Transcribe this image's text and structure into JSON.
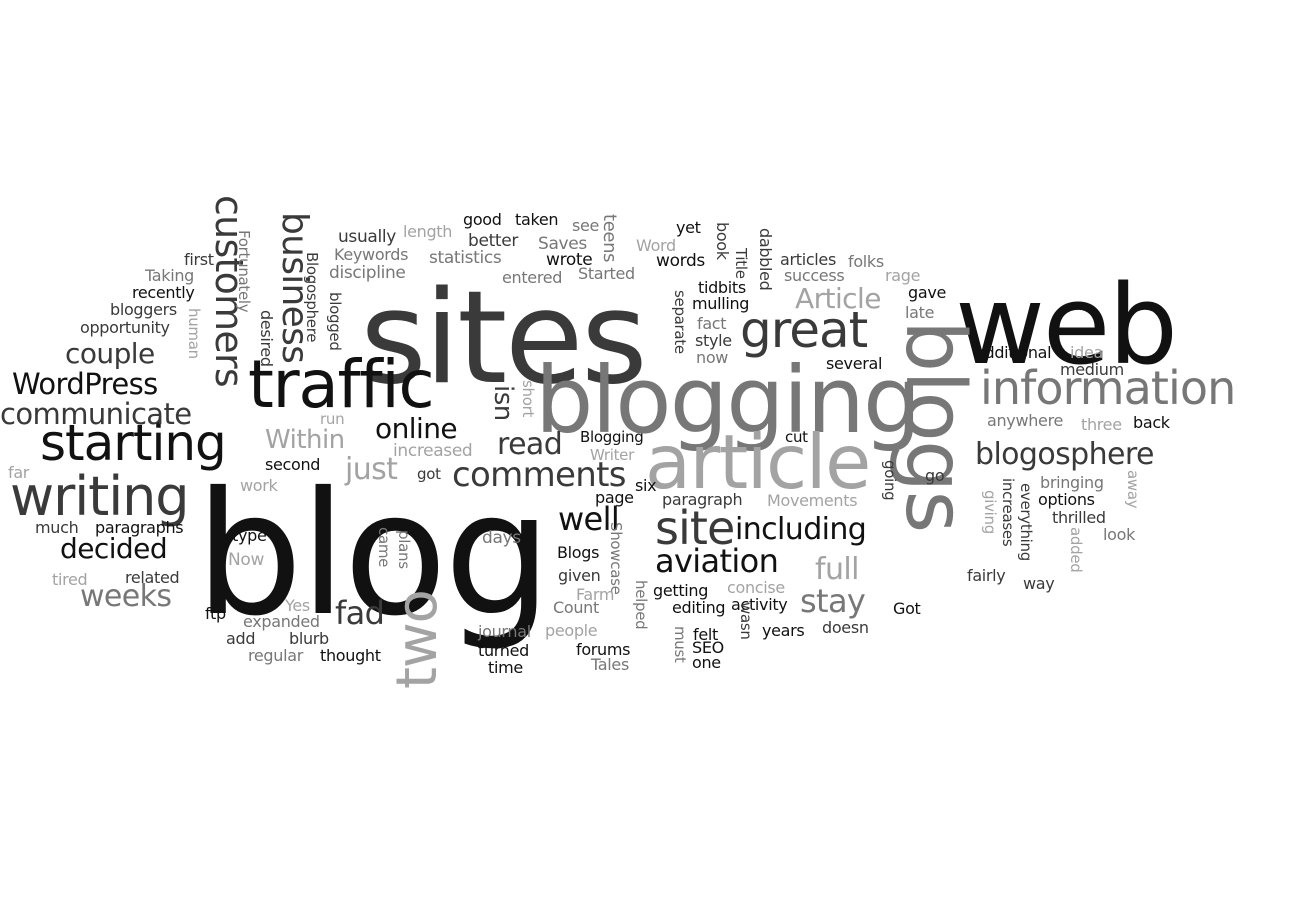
{
  "word_cloud": {
    "colors": {
      "black": "#111111",
      "dark": "#3a3a3a",
      "gray": "#777777",
      "light": "#a3a3a3"
    },
    "words": [
      {
        "text": "blog",
        "shade": "black"
      },
      {
        "text": "sites",
        "shade": "dark"
      },
      {
        "text": "web",
        "shade": "black"
      },
      {
        "text": "blogging",
        "shade": "gray"
      },
      {
        "text": "blogs",
        "shade": "gray"
      },
      {
        "text": "article",
        "shade": "light"
      },
      {
        "text": "traffic",
        "shade": "black"
      },
      {
        "text": "information",
        "shade": "gray"
      },
      {
        "text": "two",
        "shade": "light"
      },
      {
        "text": "writing",
        "shade": "dark"
      },
      {
        "text": "starting",
        "shade": "black"
      },
      {
        "text": "great",
        "shade": "dark"
      },
      {
        "text": "site",
        "shade": "dark"
      },
      {
        "text": "customers",
        "shade": "dark"
      },
      {
        "text": "business",
        "shade": "dark"
      },
      {
        "text": "comments",
        "shade": "dark"
      },
      {
        "text": "blogosphere",
        "shade": "dark"
      },
      {
        "text": "WordPress",
        "shade": "black"
      },
      {
        "text": "communicate",
        "shade": "dark"
      },
      {
        "text": "including",
        "shade": "black"
      },
      {
        "text": "aviation",
        "shade": "black"
      },
      {
        "text": "couple",
        "shade": "dark"
      },
      {
        "text": "decided",
        "shade": "black"
      },
      {
        "text": "Article",
        "shade": "light"
      },
      {
        "text": "online",
        "shade": "black"
      },
      {
        "text": "read",
        "shade": "dark"
      },
      {
        "text": "isn",
        "shade": "dark"
      },
      {
        "text": "just",
        "shade": "light"
      },
      {
        "text": "well",
        "shade": "black"
      },
      {
        "text": "full",
        "shade": "light"
      },
      {
        "text": "stay",
        "shade": "gray"
      },
      {
        "text": "fad",
        "shade": "dark"
      },
      {
        "text": "weeks",
        "shade": "gray"
      },
      {
        "text": "Within",
        "shade": "light"
      },
      {
        "text": "increased",
        "shade": "light"
      },
      {
        "text": "second",
        "shade": "black"
      },
      {
        "text": "got",
        "shade": "dark"
      },
      {
        "text": "Blogging",
        "shade": "black"
      },
      {
        "text": "Writer",
        "shade": "light"
      },
      {
        "text": "cut",
        "shade": "black"
      },
      {
        "text": "good",
        "shade": "black"
      },
      {
        "text": "taken",
        "shade": "black"
      },
      {
        "text": "see",
        "shade": "gray"
      },
      {
        "text": "teens",
        "shade": "gray"
      },
      {
        "text": "better",
        "shade": "dark"
      },
      {
        "text": "Saves",
        "shade": "gray"
      },
      {
        "text": "Word",
        "shade": "light"
      },
      {
        "text": "yet",
        "shade": "black"
      },
      {
        "text": "book",
        "shade": "dark"
      },
      {
        "text": "usually",
        "shade": "dark"
      },
      {
        "text": "length",
        "shade": "light"
      },
      {
        "text": "Keywords",
        "shade": "gray"
      },
      {
        "text": "statistics",
        "shade": "gray"
      },
      {
        "text": "wrote",
        "shade": "black"
      },
      {
        "text": "words",
        "shade": "black"
      },
      {
        "text": "Title",
        "shade": "dark"
      },
      {
        "text": "dabbled",
        "shade": "dark"
      },
      {
        "text": "articles",
        "shade": "dark"
      },
      {
        "text": "folks",
        "shade": "gray"
      },
      {
        "text": "discipline",
        "shade": "gray"
      },
      {
        "text": "entered",
        "shade": "gray"
      },
      {
        "text": "Started",
        "shade": "gray"
      },
      {
        "text": "success",
        "shade": "gray"
      },
      {
        "text": "rage",
        "shade": "light"
      },
      {
        "text": "first",
        "shade": "dark"
      },
      {
        "text": "Taking",
        "shade": "gray"
      },
      {
        "text": "recently",
        "shade": "black"
      },
      {
        "text": "bloggers",
        "shade": "dark"
      },
      {
        "text": "opportunity",
        "shade": "dark"
      },
      {
        "text": "human",
        "shade": "light"
      },
      {
        "text": "Fortunately",
        "shade": "gray"
      },
      {
        "text": "desired",
        "shade": "dark"
      },
      {
        "text": "Blogosphere",
        "shade": "dark"
      },
      {
        "text": "blogged",
        "shade": "dark"
      },
      {
        "text": "tidbits",
        "shade": "black"
      },
      {
        "text": "mulling",
        "shade": "black"
      },
      {
        "text": "gave",
        "shade": "black"
      },
      {
        "text": "late",
        "shade": "gray"
      },
      {
        "text": "separate",
        "shade": "dark"
      },
      {
        "text": "fact",
        "shade": "gray"
      },
      {
        "text": "style",
        "shade": "dark"
      },
      {
        "text": "now",
        "shade": "gray"
      },
      {
        "text": "additional",
        "shade": "black"
      },
      {
        "text": "idea",
        "shade": "light"
      },
      {
        "text": "medium",
        "shade": "dark"
      },
      {
        "text": "several",
        "shade": "black"
      },
      {
        "text": "short",
        "shade": "light"
      },
      {
        "text": "anywhere",
        "shade": "gray"
      },
      {
        "text": "three",
        "shade": "light"
      },
      {
        "text": "back",
        "shade": "black"
      },
      {
        "text": "run",
        "shade": "light"
      },
      {
        "text": "far",
        "shade": "light"
      },
      {
        "text": "work",
        "shade": "light"
      },
      {
        "text": "Movements",
        "shade": "light"
      },
      {
        "text": "paragraph",
        "shade": "dark"
      },
      {
        "text": "page",
        "shade": "black"
      },
      {
        "text": "six",
        "shade": "black"
      },
      {
        "text": "going",
        "shade": "dark"
      },
      {
        "text": "go",
        "shade": "dark"
      },
      {
        "text": "giving",
        "shade": "light"
      },
      {
        "text": "increases",
        "shade": "dark"
      },
      {
        "text": "everything",
        "shade": "dark"
      },
      {
        "text": "bringing",
        "shade": "gray"
      },
      {
        "text": "options",
        "shade": "black"
      },
      {
        "text": "away",
        "shade": "light"
      },
      {
        "text": "thrilled",
        "shade": "dark"
      },
      {
        "text": "added",
        "shade": "light"
      },
      {
        "text": "look",
        "shade": "gray"
      },
      {
        "text": "much",
        "shade": "dark"
      },
      {
        "text": "paragraphs",
        "shade": "black"
      },
      {
        "text": "type",
        "shade": "black"
      },
      {
        "text": "days",
        "shade": "gray"
      },
      {
        "text": "came",
        "shade": "gray"
      },
      {
        "text": "plans",
        "shade": "gray"
      },
      {
        "text": "Blogs",
        "shade": "black"
      },
      {
        "text": "Showcase",
        "shade": "gray"
      },
      {
        "text": "tired",
        "shade": "light"
      },
      {
        "text": "related",
        "shade": "dark"
      },
      {
        "text": "Now",
        "shade": "light"
      },
      {
        "text": "given",
        "shade": "dark"
      },
      {
        "text": "Farm",
        "shade": "light"
      },
      {
        "text": "getting",
        "shade": "black"
      },
      {
        "text": "concise",
        "shade": "light"
      },
      {
        "text": "fairly",
        "shade": "dark"
      },
      {
        "text": "way",
        "shade": "dark"
      },
      {
        "text": "Count",
        "shade": "gray"
      },
      {
        "text": "helped",
        "shade": "gray"
      },
      {
        "text": "editing",
        "shade": "black"
      },
      {
        "text": "activity",
        "shade": "black"
      },
      {
        "text": "Got",
        "shade": "black"
      },
      {
        "text": "ftp",
        "shade": "black"
      },
      {
        "text": "expanded",
        "shade": "gray"
      },
      {
        "text": "Yes",
        "shade": "light"
      },
      {
        "text": "years",
        "shade": "black"
      },
      {
        "text": "doesn",
        "shade": "dark"
      },
      {
        "text": "journal",
        "shade": "gray"
      },
      {
        "text": "people",
        "shade": "light"
      },
      {
        "text": "must",
        "shade": "gray"
      },
      {
        "text": "felt",
        "shade": "black"
      },
      {
        "text": "wasn",
        "shade": "dark"
      },
      {
        "text": "add",
        "shade": "dark"
      },
      {
        "text": "blurb",
        "shade": "dark"
      },
      {
        "text": "SEO",
        "shade": "black"
      },
      {
        "text": "regular",
        "shade": "gray"
      },
      {
        "text": "thought",
        "shade": "black"
      },
      {
        "text": "turned",
        "shade": "black"
      },
      {
        "text": "forums",
        "shade": "black"
      },
      {
        "text": "one",
        "shade": "black"
      },
      {
        "text": "time",
        "shade": "black"
      },
      {
        "text": "Tales",
        "shade": "gray"
      }
    ]
  }
}
